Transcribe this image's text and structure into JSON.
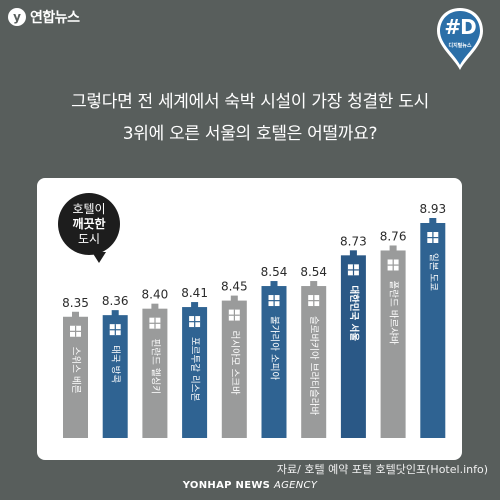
{
  "brand": {
    "logo_glyph": "y",
    "logo_text": "연합뉴스",
    "badge_hash": "#D",
    "badge_sub": "디지털뉴스",
    "footer_bold": "YONHAP NEWS",
    "footer_light": "AGENCY"
  },
  "headline": {
    "line1": "그렇다면 전 세계에서 숙박 시설이 가장 청결한 도시",
    "line2": "3위에 오른 서울의 호텔은 어떨까요?"
  },
  "bubble": {
    "line1": "호텔이",
    "line2": "깨끗한",
    "line3": "도시"
  },
  "source": "자료/ 호텔 예약 포털 호텔닷인포(Hotel.info)",
  "colors": {
    "background": "#585e5c",
    "gray_building": "#9a9b9b",
    "blue_building": "#2f6392",
    "seoul_building": "#2a5886"
  },
  "chart_data": {
    "type": "bar",
    "categories": [
      "스위스 베른",
      "태국 방콕",
      "핀란드 헬싱키",
      "포르투갈 리스본",
      "러시아모 스크바",
      "불가리아 소피아",
      "슬로바키아 브라티슬라바",
      "대한민국 서울",
      "폴란드 바르샤바",
      "일본 도쿄"
    ],
    "values": [
      8.35,
      8.36,
      8.4,
      8.41,
      8.45,
      8.54,
      8.54,
      8.73,
      8.76,
      8.93
    ],
    "value_labels": [
      "8.35",
      "8.36",
      "8.40",
      "8.41",
      "8.45",
      "8.54",
      "8.54",
      "8.73",
      "8.76",
      "8.93"
    ],
    "styles": [
      "gray",
      "blue",
      "gray",
      "blue",
      "gray",
      "blue",
      "gray",
      "blue",
      "gray",
      "blue"
    ],
    "highlight": "대한민국 서울",
    "ylim": [
      7.6,
      8.93
    ]
  }
}
